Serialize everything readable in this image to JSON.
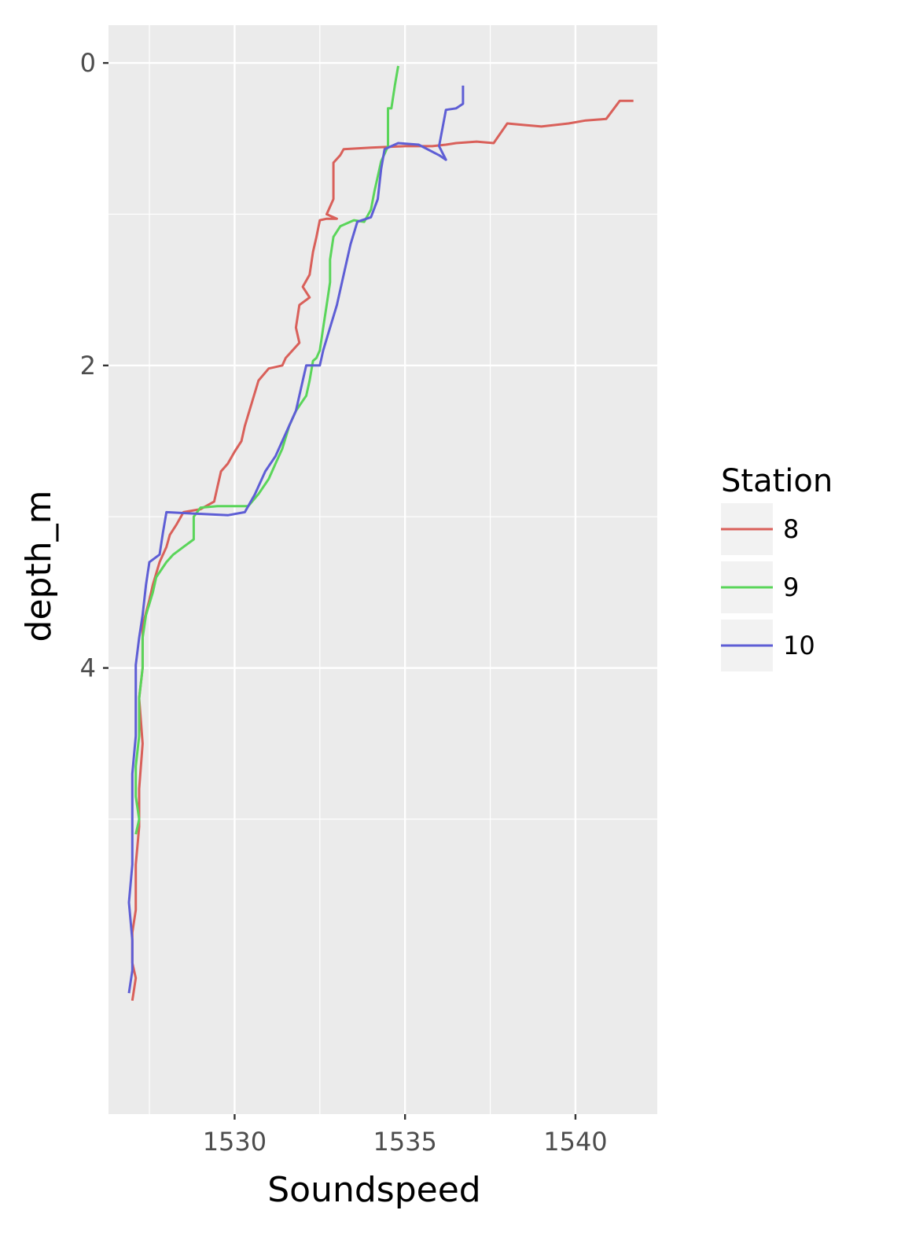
{
  "chart_data": {
    "type": "line",
    "xlabel": "Soundspeed",
    "ylabel": "depth_m",
    "xlim": [
      1526.3,
      1542.4
    ],
    "ylim": [
      6.95,
      -0.25
    ],
    "y_reversed": true,
    "xticks": [
      1530,
      1535,
      1540
    ],
    "yticks": [
      0,
      2,
      4
    ],
    "xtick_labels": [
      "1530",
      "1535",
      "1540"
    ],
    "ytick_labels": [
      "0",
      "2",
      "4"
    ],
    "grid": true,
    "legend": {
      "title": "Station",
      "position": "right"
    },
    "series": [
      {
        "name": "8",
        "color": "#D9605A",
        "points": [
          [
            1541.7,
            0.25
          ],
          [
            1541.3,
            0.25
          ],
          [
            1540.9,
            0.37
          ],
          [
            1540.3,
            0.38
          ],
          [
            1539.8,
            0.4
          ],
          [
            1539.0,
            0.42
          ],
          [
            1538.5,
            0.41
          ],
          [
            1538.0,
            0.4
          ],
          [
            1537.6,
            0.53
          ],
          [
            1537.1,
            0.52
          ],
          [
            1536.5,
            0.53
          ],
          [
            1536.2,
            0.54
          ],
          [
            1535.8,
            0.55
          ],
          [
            1535.0,
            0.55
          ],
          [
            1534.0,
            0.56
          ],
          [
            1533.2,
            0.57
          ],
          [
            1533.1,
            0.61
          ],
          [
            1532.9,
            0.66
          ],
          [
            1532.9,
            0.9
          ],
          [
            1532.7,
            1.0
          ],
          [
            1533.0,
            1.03
          ],
          [
            1532.7,
            1.03
          ],
          [
            1532.5,
            1.04
          ],
          [
            1532.4,
            1.15
          ],
          [
            1532.3,
            1.25
          ],
          [
            1532.2,
            1.4
          ],
          [
            1532.0,
            1.48
          ],
          [
            1532.2,
            1.55
          ],
          [
            1531.9,
            1.6
          ],
          [
            1531.8,
            1.75
          ],
          [
            1531.9,
            1.85
          ],
          [
            1531.5,
            1.95
          ],
          [
            1531.4,
            2.0
          ],
          [
            1531.0,
            2.02
          ],
          [
            1530.7,
            2.1
          ],
          [
            1530.5,
            2.25
          ],
          [
            1530.3,
            2.4
          ],
          [
            1530.2,
            2.5
          ],
          [
            1530.0,
            2.57
          ],
          [
            1529.8,
            2.65
          ],
          [
            1529.6,
            2.7
          ],
          [
            1529.5,
            2.8
          ],
          [
            1529.4,
            2.9
          ],
          [
            1529.0,
            2.95
          ],
          [
            1528.5,
            2.97
          ],
          [
            1528.3,
            3.05
          ],
          [
            1528.1,
            3.12
          ],
          [
            1528.0,
            3.2
          ],
          [
            1527.8,
            3.3
          ],
          [
            1527.6,
            3.45
          ],
          [
            1527.5,
            3.55
          ],
          [
            1527.3,
            3.72
          ],
          [
            1527.3,
            4.0
          ],
          [
            1527.2,
            4.2
          ],
          [
            1527.3,
            4.5
          ],
          [
            1527.2,
            4.8
          ],
          [
            1527.2,
            5.05
          ],
          [
            1527.1,
            5.3
          ],
          [
            1527.1,
            5.6
          ],
          [
            1527.0,
            5.75
          ],
          [
            1527.0,
            5.95
          ],
          [
            1527.1,
            6.05
          ],
          [
            1527.0,
            6.2
          ]
        ]
      },
      {
        "name": "9",
        "color": "#5AD55A",
        "points": [
          [
            1534.8,
            0.02
          ],
          [
            1534.7,
            0.15
          ],
          [
            1534.6,
            0.3
          ],
          [
            1534.5,
            0.3
          ],
          [
            1534.5,
            0.55
          ],
          [
            1534.4,
            0.6
          ],
          [
            1534.3,
            0.65
          ],
          [
            1534.2,
            0.75
          ],
          [
            1534.1,
            0.85
          ],
          [
            1534.0,
            0.97
          ],
          [
            1533.8,
            1.05
          ],
          [
            1533.5,
            1.04
          ],
          [
            1533.1,
            1.08
          ],
          [
            1532.9,
            1.15
          ],
          [
            1532.8,
            1.3
          ],
          [
            1532.8,
            1.45
          ],
          [
            1532.7,
            1.6
          ],
          [
            1532.6,
            1.75
          ],
          [
            1532.5,
            1.9
          ],
          [
            1532.4,
            1.95
          ],
          [
            1532.3,
            1.97
          ],
          [
            1532.2,
            2.1
          ],
          [
            1532.1,
            2.2
          ],
          [
            1531.8,
            2.3
          ],
          [
            1531.6,
            2.4
          ],
          [
            1531.4,
            2.55
          ],
          [
            1531.2,
            2.65
          ],
          [
            1531.0,
            2.75
          ],
          [
            1530.7,
            2.85
          ],
          [
            1530.4,
            2.93
          ],
          [
            1529.5,
            2.93
          ],
          [
            1529.0,
            2.94
          ],
          [
            1528.8,
            3.0
          ],
          [
            1528.8,
            3.15
          ],
          [
            1528.5,
            3.2
          ],
          [
            1528.2,
            3.25
          ],
          [
            1528.0,
            3.3
          ],
          [
            1527.7,
            3.4
          ],
          [
            1527.6,
            3.5
          ],
          [
            1527.4,
            3.65
          ],
          [
            1527.3,
            3.8
          ],
          [
            1527.3,
            4.0
          ],
          [
            1527.2,
            4.2
          ],
          [
            1527.2,
            4.45
          ],
          [
            1527.1,
            4.65
          ],
          [
            1527.1,
            4.85
          ],
          [
            1527.2,
            5.0
          ],
          [
            1527.1,
            5.1
          ]
        ]
      },
      {
        "name": "10",
        "color": "#5E5ED5",
        "points": [
          [
            1536.7,
            0.15
          ],
          [
            1536.7,
            0.27
          ],
          [
            1536.5,
            0.3
          ],
          [
            1536.2,
            0.31
          ],
          [
            1536.0,
            0.55
          ],
          [
            1536.2,
            0.64
          ],
          [
            1536.0,
            0.61
          ],
          [
            1535.4,
            0.54
          ],
          [
            1534.8,
            0.53
          ],
          [
            1534.4,
            0.57
          ],
          [
            1534.3,
            0.7
          ],
          [
            1534.2,
            0.9
          ],
          [
            1534.0,
            1.02
          ],
          [
            1533.6,
            1.05
          ],
          [
            1533.4,
            1.2
          ],
          [
            1533.2,
            1.4
          ],
          [
            1533.0,
            1.6
          ],
          [
            1532.8,
            1.75
          ],
          [
            1532.6,
            1.9
          ],
          [
            1532.5,
            2.0
          ],
          [
            1532.1,
            2.0
          ],
          [
            1532.0,
            2.1
          ],
          [
            1531.8,
            2.3
          ],
          [
            1531.5,
            2.45
          ],
          [
            1531.2,
            2.6
          ],
          [
            1530.9,
            2.7
          ],
          [
            1530.6,
            2.85
          ],
          [
            1530.3,
            2.97
          ],
          [
            1529.8,
            2.99
          ],
          [
            1528.0,
            2.97
          ],
          [
            1527.9,
            3.1
          ],
          [
            1527.8,
            3.25
          ],
          [
            1527.5,
            3.3
          ],
          [
            1527.4,
            3.45
          ],
          [
            1527.3,
            3.65
          ],
          [
            1527.2,
            3.8
          ],
          [
            1527.1,
            3.98
          ],
          [
            1527.1,
            4.2
          ],
          [
            1527.1,
            4.45
          ],
          [
            1527.0,
            4.7
          ],
          [
            1527.0,
            5.0
          ],
          [
            1527.0,
            5.3
          ],
          [
            1526.9,
            5.55
          ],
          [
            1527.0,
            5.8
          ],
          [
            1527.0,
            6.0
          ],
          [
            1526.9,
            6.15
          ]
        ]
      }
    ]
  }
}
